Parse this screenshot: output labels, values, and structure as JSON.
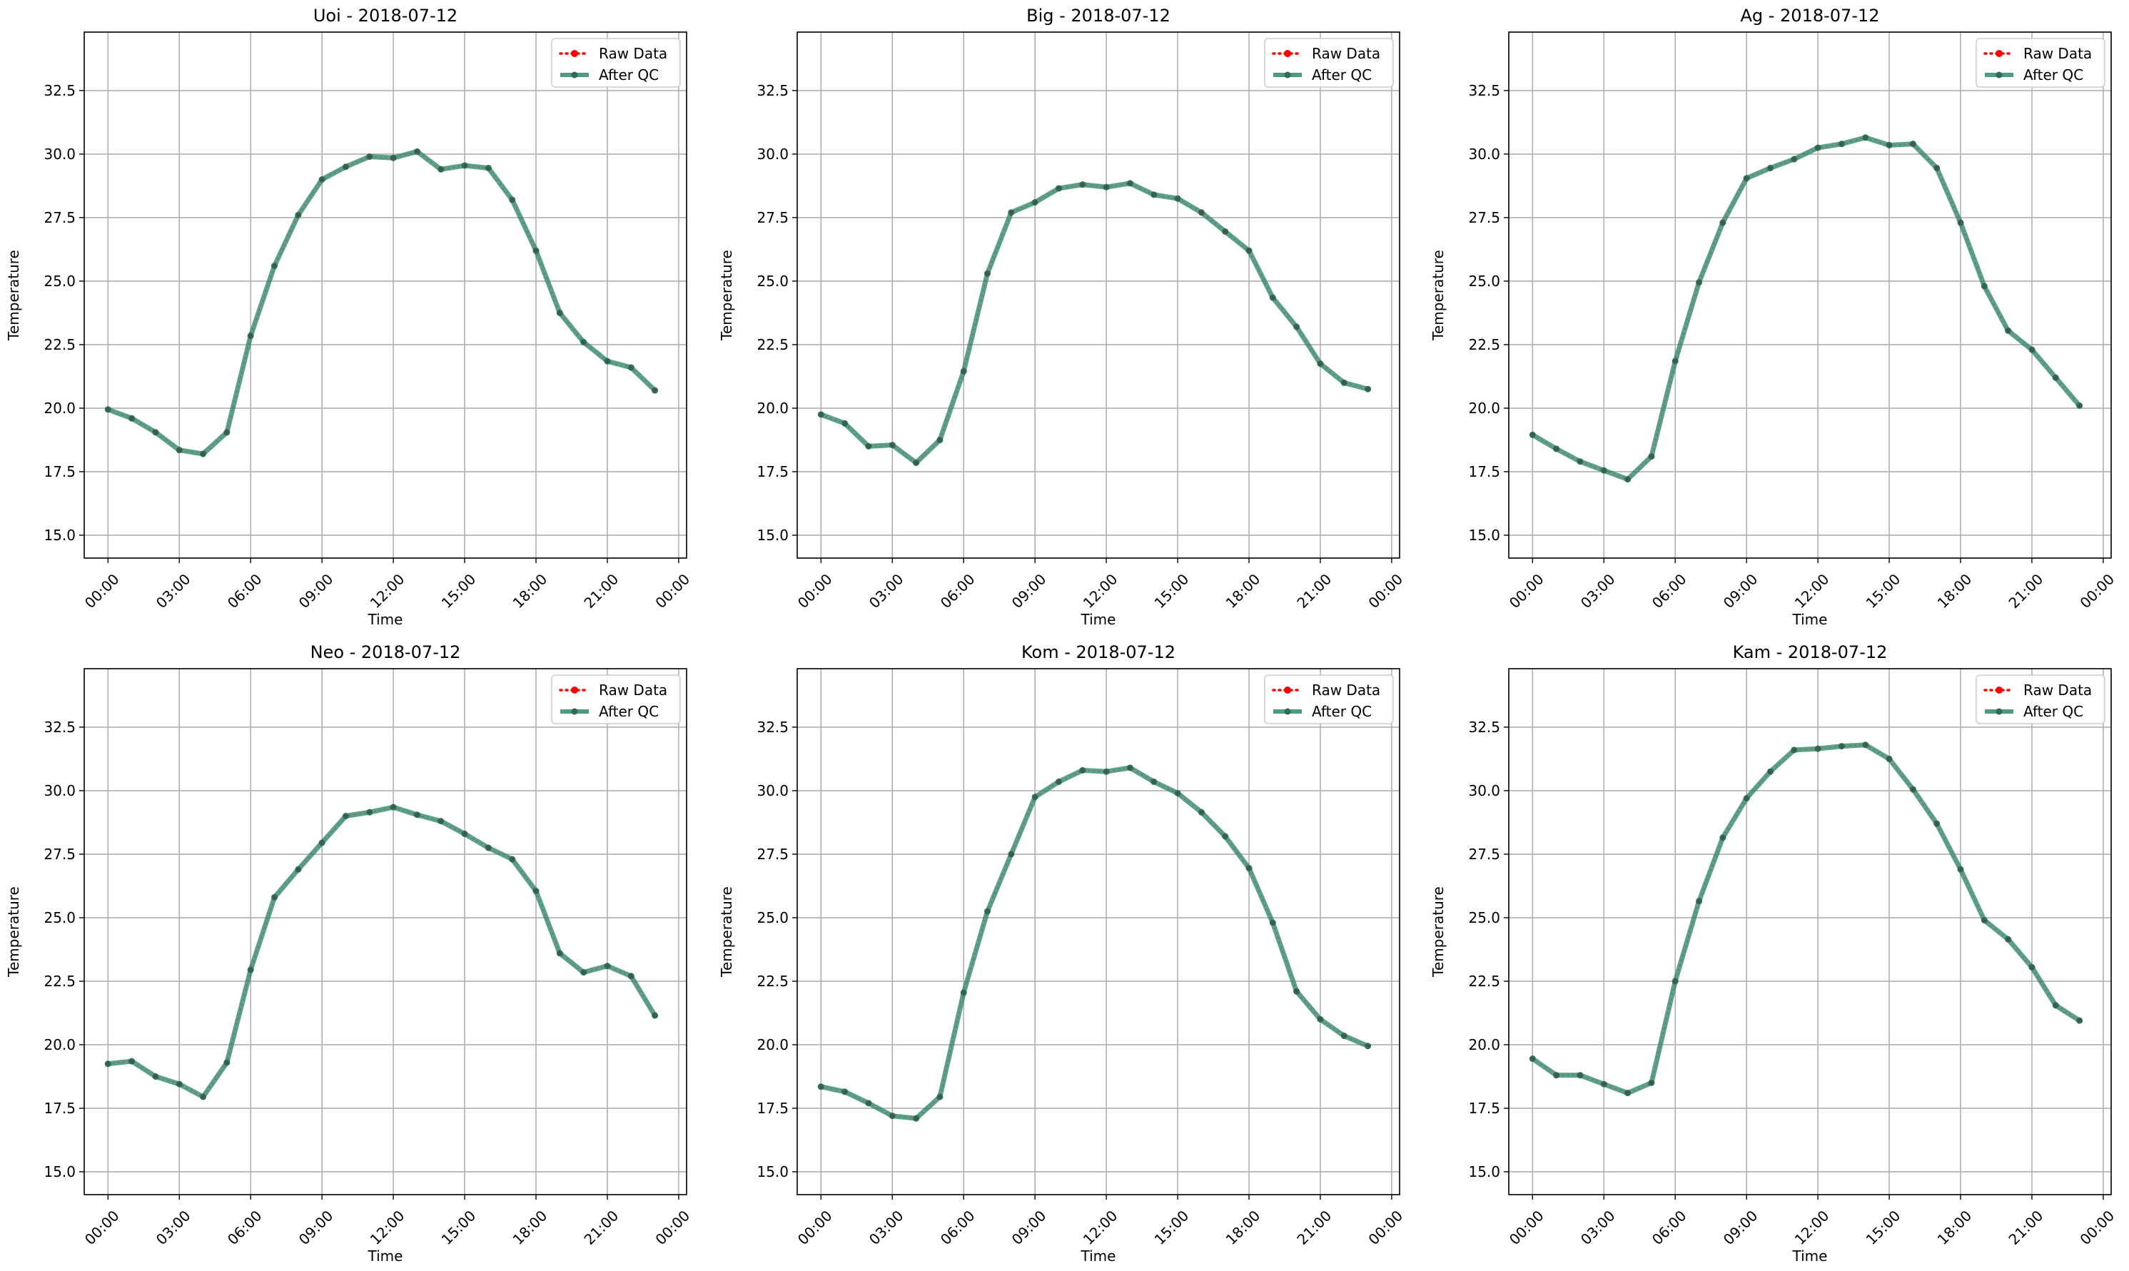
{
  "figure": {
    "background": "#ffffff"
  },
  "style": {
    "raw_color": "#ff0000",
    "qc_color": "#2e8b6b",
    "qc_marker_color": "#2f6b55",
    "grid_color": "#b0b0b0"
  },
  "chart_data": [
    {
      "type": "line",
      "title": "Uoi - 2018-07-12",
      "xlabel": "Time",
      "ylabel": "Temperature",
      "xlim": [
        "2018-07-11 23:00",
        "2018-07-13 00:20"
      ],
      "ylim": [
        14.1,
        34.8
      ],
      "xticks": [
        "00:00",
        "03:00",
        "06:00",
        "09:00",
        "12:00",
        "15:00",
        "18:00",
        "21:00",
        "00:00"
      ],
      "yticks": [
        "15.0",
        "17.5",
        "20.0",
        "22.5",
        "25.0",
        "27.5",
        "30.0",
        "32.5"
      ],
      "grid": true,
      "legend": "upper right",
      "x": [
        "00:00",
        "01:00",
        "02:00",
        "03:00",
        "04:00",
        "05:00",
        "06:00",
        "07:00",
        "08:00",
        "09:00",
        "10:00",
        "11:00",
        "12:00",
        "13:00",
        "14:00",
        "15:00",
        "16:00",
        "17:00",
        "18:00",
        "19:00",
        "20:00",
        "21:00",
        "22:00",
        "23:00"
      ],
      "series": [
        {
          "name": "Raw Data",
          "values": [
            19.95,
            19.6,
            19.05,
            18.35,
            18.2,
            19.05,
            22.85,
            25.6,
            27.6,
            29.0,
            29.5,
            29.9,
            29.85,
            30.1,
            29.4,
            29.55,
            29.45,
            28.2,
            26.2,
            23.75,
            22.6,
            21.85,
            21.6,
            20.7
          ]
        },
        {
          "name": "After QC",
          "values": [
            19.95,
            19.6,
            19.05,
            18.35,
            18.2,
            19.05,
            22.85,
            25.6,
            27.6,
            29.0,
            29.5,
            29.9,
            29.85,
            30.1,
            29.4,
            29.55,
            29.45,
            28.2,
            26.2,
            23.75,
            22.6,
            21.85,
            21.6,
            20.7
          ]
        }
      ]
    },
    {
      "type": "line",
      "title": "Big - 2018-07-12",
      "xlabel": "Time",
      "ylabel": "Temperature",
      "xlim": [
        "2018-07-11 23:00",
        "2018-07-13 00:20"
      ],
      "ylim": [
        14.1,
        34.8
      ],
      "xticks": [
        "00:00",
        "03:00",
        "06:00",
        "09:00",
        "12:00",
        "15:00",
        "18:00",
        "21:00",
        "00:00"
      ],
      "yticks": [
        "15.0",
        "17.5",
        "20.0",
        "22.5",
        "25.0",
        "27.5",
        "30.0",
        "32.5"
      ],
      "grid": true,
      "legend": "upper right",
      "x": [
        "00:00",
        "01:00",
        "02:00",
        "03:00",
        "04:00",
        "05:00",
        "06:00",
        "07:00",
        "08:00",
        "09:00",
        "10:00",
        "11:00",
        "12:00",
        "13:00",
        "14:00",
        "15:00",
        "16:00",
        "17:00",
        "18:00",
        "19:00",
        "20:00",
        "21:00",
        "22:00",
        "23:00"
      ],
      "series": [
        {
          "name": "Raw Data",
          "values": [
            19.75,
            19.4,
            18.5,
            18.55,
            17.85,
            18.75,
            21.45,
            25.3,
            27.7,
            28.1,
            28.65,
            28.8,
            28.7,
            28.85,
            28.4,
            28.25,
            27.7,
            26.95,
            26.2,
            24.35,
            23.2,
            21.75,
            21.0,
            20.75
          ]
        },
        {
          "name": "After QC",
          "values": [
            19.75,
            19.4,
            18.5,
            18.55,
            17.85,
            18.75,
            21.45,
            25.3,
            27.7,
            28.1,
            28.65,
            28.8,
            28.7,
            28.85,
            28.4,
            28.25,
            27.7,
            26.95,
            26.2,
            24.35,
            23.2,
            21.75,
            21.0,
            20.75
          ]
        }
      ]
    },
    {
      "type": "line",
      "title": "Ag - 2018-07-12",
      "xlabel": "Time",
      "ylabel": "Temperature",
      "xlim": [
        "2018-07-11 23:00",
        "2018-07-13 00:20"
      ],
      "ylim": [
        14.1,
        34.8
      ],
      "xticks": [
        "00:00",
        "03:00",
        "06:00",
        "09:00",
        "12:00",
        "15:00",
        "18:00",
        "21:00",
        "00:00"
      ],
      "yticks": [
        "15.0",
        "17.5",
        "20.0",
        "22.5",
        "25.0",
        "27.5",
        "30.0",
        "32.5"
      ],
      "grid": true,
      "legend": "upper right",
      "x": [
        "00:00",
        "01:00",
        "02:00",
        "03:00",
        "04:00",
        "05:00",
        "06:00",
        "07:00",
        "08:00",
        "09:00",
        "10:00",
        "11:00",
        "12:00",
        "13:00",
        "14:00",
        "15:00",
        "16:00",
        "17:00",
        "18:00",
        "19:00",
        "20:00",
        "21:00",
        "22:00",
        "23:00"
      ],
      "series": [
        {
          "name": "Raw Data",
          "values": [
            18.95,
            18.4,
            17.9,
            17.55,
            17.2,
            18.1,
            21.85,
            24.95,
            27.3,
            29.05,
            29.45,
            29.8,
            30.25,
            30.4,
            30.65,
            30.35,
            30.4,
            29.45,
            27.3,
            24.8,
            23.05,
            22.3,
            21.2,
            20.1
          ]
        },
        {
          "name": "After QC",
          "values": [
            18.95,
            18.4,
            17.9,
            17.55,
            17.2,
            18.1,
            21.85,
            24.95,
            27.3,
            29.05,
            29.45,
            29.8,
            30.25,
            30.4,
            30.65,
            30.35,
            30.4,
            29.45,
            27.3,
            24.8,
            23.05,
            22.3,
            21.2,
            20.1
          ]
        }
      ]
    },
    {
      "type": "line",
      "title": "Neo - 2018-07-12",
      "xlabel": "Time",
      "ylabel": "Temperature",
      "xlim": [
        "2018-07-11 23:00",
        "2018-07-13 00:20"
      ],
      "ylim": [
        14.1,
        34.8
      ],
      "xticks": [
        "00:00",
        "03:00",
        "06:00",
        "09:00",
        "12:00",
        "15:00",
        "18:00",
        "21:00",
        "00:00"
      ],
      "yticks": [
        "15.0",
        "17.5",
        "20.0",
        "22.5",
        "25.0",
        "27.5",
        "30.0",
        "32.5"
      ],
      "grid": true,
      "legend": "upper right",
      "x": [
        "00:00",
        "01:00",
        "02:00",
        "03:00",
        "04:00",
        "05:00",
        "06:00",
        "07:00",
        "08:00",
        "09:00",
        "10:00",
        "11:00",
        "12:00",
        "13:00",
        "14:00",
        "15:00",
        "16:00",
        "17:00",
        "18:00",
        "19:00",
        "20:00",
        "21:00",
        "22:00",
        "23:00"
      ],
      "series": [
        {
          "name": "Raw Data",
          "values": [
            19.25,
            19.35,
            18.75,
            18.45,
            17.95,
            19.3,
            22.95,
            25.8,
            26.9,
            27.95,
            29.0,
            29.15,
            29.35,
            29.05,
            28.8,
            28.3,
            27.75,
            27.3,
            26.05,
            23.6,
            22.85,
            23.1,
            22.7,
            21.15
          ]
        },
        {
          "name": "After QC",
          "values": [
            19.25,
            19.35,
            18.75,
            18.45,
            17.95,
            19.3,
            22.95,
            25.8,
            26.9,
            27.95,
            29.0,
            29.15,
            29.35,
            29.05,
            28.8,
            28.3,
            27.75,
            27.3,
            26.05,
            23.6,
            22.85,
            23.1,
            22.7,
            21.15
          ]
        }
      ]
    },
    {
      "type": "line",
      "title": "Kom - 2018-07-12",
      "xlabel": "Time",
      "ylabel": "Temperature",
      "xlim": [
        "2018-07-11 23:00",
        "2018-07-13 00:20"
      ],
      "ylim": [
        14.1,
        34.8
      ],
      "xticks": [
        "00:00",
        "03:00",
        "06:00",
        "09:00",
        "12:00",
        "15:00",
        "18:00",
        "21:00",
        "00:00"
      ],
      "yticks": [
        "15.0",
        "17.5",
        "20.0",
        "22.5",
        "25.0",
        "27.5",
        "30.0",
        "32.5"
      ],
      "grid": true,
      "legend": "upper right",
      "x": [
        "00:00",
        "01:00",
        "02:00",
        "03:00",
        "04:00",
        "05:00",
        "06:00",
        "07:00",
        "08:00",
        "09:00",
        "10:00",
        "11:00",
        "12:00",
        "13:00",
        "14:00",
        "15:00",
        "16:00",
        "17:00",
        "18:00",
        "19:00",
        "20:00",
        "21:00",
        "22:00",
        "23:00"
      ],
      "series": [
        {
          "name": "Raw Data",
          "values": [
            18.35,
            18.15,
            17.7,
            17.2,
            17.1,
            17.95,
            22.05,
            25.25,
            27.5,
            29.75,
            30.35,
            30.8,
            30.75,
            30.9,
            30.35,
            29.9,
            29.15,
            28.2,
            26.95,
            24.8,
            22.1,
            21.0,
            20.35,
            19.95
          ]
        },
        {
          "name": "After QC",
          "values": [
            18.35,
            18.15,
            17.7,
            17.2,
            17.1,
            17.95,
            22.05,
            25.25,
            27.5,
            29.75,
            30.35,
            30.8,
            30.75,
            30.9,
            30.35,
            29.9,
            29.15,
            28.2,
            26.95,
            24.8,
            22.1,
            21.0,
            20.35,
            19.95
          ]
        }
      ]
    },
    {
      "type": "line",
      "title": "Kam - 2018-07-12",
      "xlabel": "Time",
      "ylabel": "Temperature",
      "xlim": [
        "2018-07-11 23:00",
        "2018-07-13 00:20"
      ],
      "ylim": [
        14.1,
        34.8
      ],
      "xticks": [
        "00:00",
        "03:00",
        "06:00",
        "09:00",
        "12:00",
        "15:00",
        "18:00",
        "21:00",
        "00:00"
      ],
      "yticks": [
        "15.0",
        "17.5",
        "20.0",
        "22.5",
        "25.0",
        "27.5",
        "30.0",
        "32.5"
      ],
      "grid": true,
      "legend": "upper right",
      "x": [
        "00:00",
        "01:00",
        "02:00",
        "03:00",
        "04:00",
        "05:00",
        "06:00",
        "07:00",
        "08:00",
        "09:00",
        "10:00",
        "11:00",
        "12:00",
        "13:00",
        "14:00",
        "15:00",
        "16:00",
        "17:00",
        "18:00",
        "19:00",
        "20:00",
        "21:00",
        "22:00",
        "23:00"
      ],
      "series": [
        {
          "name": "Raw Data",
          "values": [
            19.45,
            18.8,
            18.8,
            18.45,
            18.1,
            18.5,
            22.5,
            25.65,
            28.15,
            29.7,
            30.75,
            31.6,
            31.65,
            31.75,
            31.8,
            31.25,
            30.05,
            28.7,
            26.9,
            24.9,
            24.15,
            23.05,
            21.55,
            20.95
          ]
        },
        {
          "name": "After QC",
          "values": [
            19.45,
            18.8,
            18.8,
            18.45,
            18.1,
            18.5,
            22.5,
            25.65,
            28.15,
            29.7,
            30.75,
            31.6,
            31.65,
            31.75,
            31.8,
            31.25,
            30.05,
            28.7,
            26.9,
            24.9,
            24.15,
            23.05,
            21.55,
            20.95
          ]
        }
      ]
    }
  ]
}
